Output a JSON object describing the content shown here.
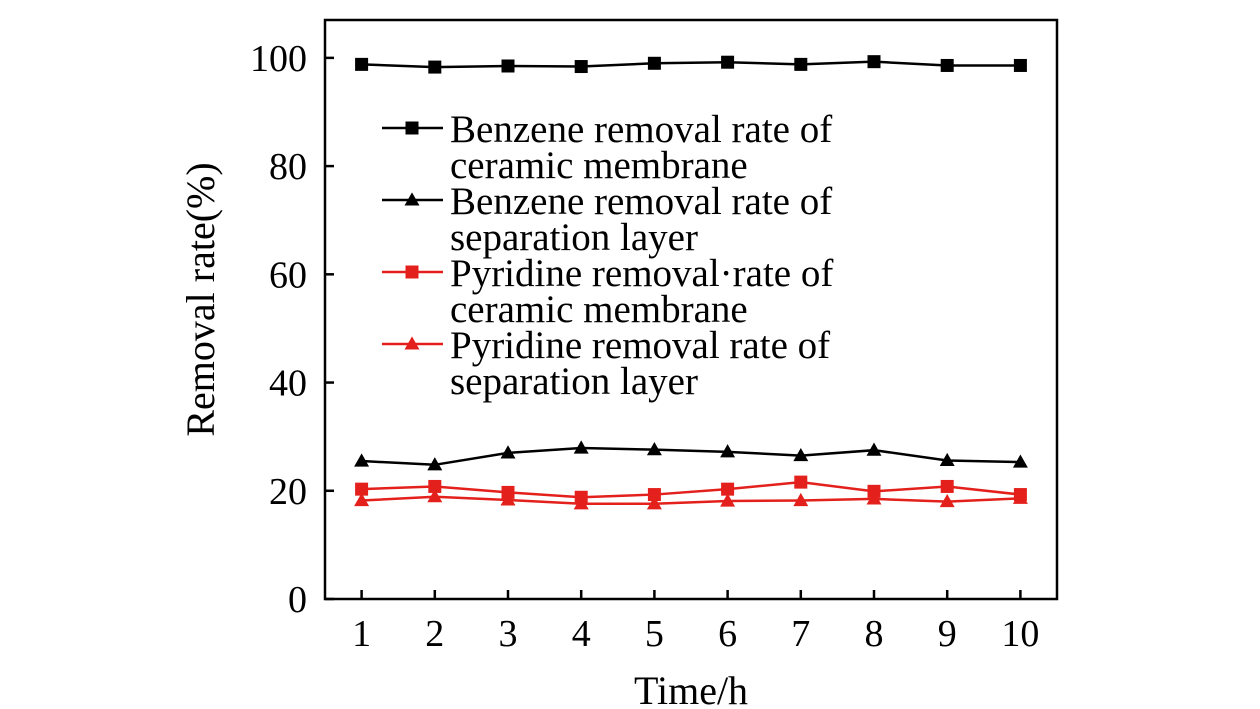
{
  "chart_data": {
    "type": "line",
    "title": "",
    "xlabel": "Time/h",
    "ylabel": "Removal rate(%)",
    "xlim": [
      0.5,
      10.5
    ],
    "ylim": [
      0,
      107
    ],
    "xticks": [
      1,
      2,
      3,
      4,
      5,
      6,
      7,
      8,
      9,
      10
    ],
    "yticks": [
      0,
      20,
      40,
      60,
      80,
      100
    ],
    "grid": false,
    "legend_position": "upper-center",
    "x": [
      1,
      2,
      3,
      4,
      5,
      6,
      7,
      8,
      9,
      10
    ],
    "series": [
      {
        "name_lines": [
          "Benzene removal rate of",
          "ceramic membrane"
        ],
        "marker": "square",
        "color": "#000000",
        "values": [
          98.8,
          98.3,
          98.5,
          98.4,
          99.0,
          99.2,
          98.8,
          99.3,
          98.6,
          98.6
        ]
      },
      {
        "name_lines": [
          "Benzene removal rate of",
          "separation layer"
        ],
        "marker": "triangle",
        "color": "#000000",
        "values": [
          25.5,
          24.8,
          27.0,
          27.9,
          27.6,
          27.2,
          26.5,
          27.5,
          25.6,
          25.3
        ]
      },
      {
        "name_lines": [
          "Pyridine removal·rate of",
          "ceramic membrane"
        ],
        "marker": "square",
        "color": "#e3201b",
        "values": [
          20.3,
          20.8,
          19.7,
          18.8,
          19.3,
          20.3,
          21.6,
          19.9,
          20.8,
          19.3
        ]
      },
      {
        "name_lines": [
          "Pyridine removal rate of",
          "separation layer"
        ],
        "marker": "triangle",
        "color": "#e3201b",
        "values": [
          18.2,
          18.9,
          18.3,
          17.6,
          17.6,
          18.1,
          18.2,
          18.5,
          18.0,
          18.6
        ]
      }
    ]
  }
}
